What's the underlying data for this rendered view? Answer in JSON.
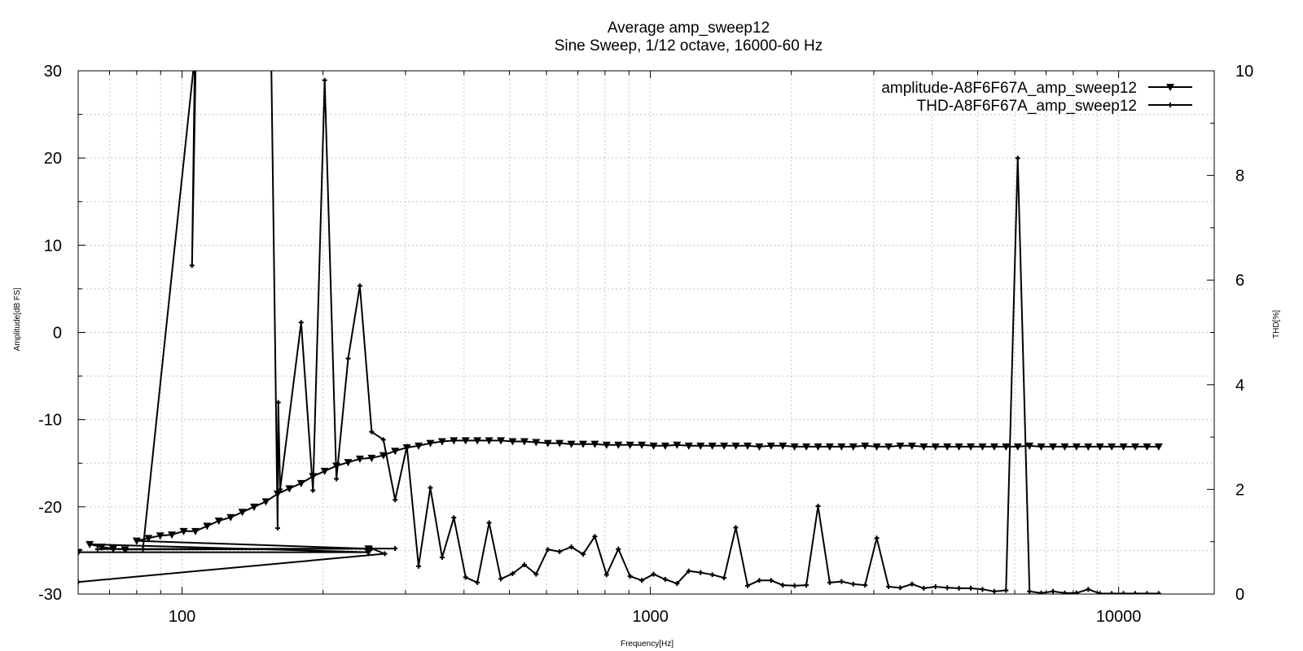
{
  "chart_data": {
    "type": "line",
    "title": "Average amp_sweep12",
    "subtitle": "Sine Sweep, 1/12 octave, 16000-60 Hz",
    "xlabel": "Frequency[Hz]",
    "ylabel": "Amplitude[dB FS]",
    "y2label": "THD[%]",
    "x_scale": "log",
    "xlim": [
      60,
      16000
    ],
    "ylim": [
      -30,
      30
    ],
    "y2lim": [
      0,
      10
    ],
    "x_ticks": [
      100,
      1000,
      10000
    ],
    "x_tick_labels": [
      "100",
      "1000",
      "10000"
    ],
    "y_ticks": [
      -30,
      -20,
      -10,
      0,
      10,
      20,
      30
    ],
    "y_tick_labels": [
      "-30",
      "-20",
      "-10",
      "0",
      "10",
      "20",
      "30"
    ],
    "y2_ticks": [
      0,
      2,
      4,
      6,
      8,
      10
    ],
    "y2_tick_labels": [
      "0",
      "2",
      "4",
      "6",
      "8",
      "10"
    ],
    "grid": true,
    "legend_position": "top-right",
    "series": [
      {
        "name": "amplitude-A8F6F67A_amp_sweep12",
        "axis": "left",
        "marker": "triangle-down",
        "color": "#000000",
        "x": [
          60,
          250,
          63.5,
          67.3,
          71.3,
          75.5,
          250,
          80,
          84.8,
          89.8,
          95.1,
          100.8,
          106.8,
          113.1,
          119.8,
          127,
          134.5,
          142.5,
          151,
          160,
          169.5,
          179.6,
          190.3,
          201.6,
          213.6,
          226.3,
          239.7,
          254,
          269.1,
          285.1,
          302,
          320,
          339,
          359.2,
          380.5,
          403.2,
          427.1,
          452.5,
          479.5,
          508,
          538.2,
          570.2,
          604.1,
          640,
          678,
          718.4,
          761.1,
          806.3,
          854.3,
          905.1,
          958.9,
          1016,
          1076,
          1140,
          1208,
          1280,
          1356,
          1437,
          1522,
          1613,
          1709,
          1810,
          1918,
          2032,
          2153,
          2281,
          2416,
          2560,
          2712,
          2874,
          3044,
          3226,
          3417,
          3620,
          3836,
          4064,
          4305,
          4561,
          4833,
          5120,
          5425,
          5747,
          6089,
          6451,
          6834,
          7241,
          7671,
          8127,
          8611,
          9123,
          9665,
          10240,
          10849,
          11494,
          12177
        ],
        "y": [
          -25.2,
          -25.2,
          -24.3,
          -24.6,
          -24.8,
          -24.9,
          -24.8,
          -23.9,
          -23.6,
          -23.3,
          -23.2,
          -22.8,
          -22.8,
          -22.2,
          -21.6,
          -21.2,
          -20.6,
          -20.0,
          -19.4,
          -18.5,
          -17.9,
          -17.3,
          -16.5,
          -15.9,
          -15.3,
          -14.9,
          -14.5,
          -14.4,
          -14.1,
          -13.6,
          -13.2,
          -13.0,
          -12.7,
          -12.5,
          -12.4,
          -12.4,
          -12.4,
          -12.4,
          -12.4,
          -12.5,
          -12.5,
          -12.6,
          -12.7,
          -12.7,
          -12.8,
          -12.8,
          -12.8,
          -12.9,
          -12.9,
          -12.9,
          -12.9,
          -13.0,
          -13.0,
          -12.9,
          -13.0,
          -13.0,
          -13.0,
          -13.0,
          -13.0,
          -13.0,
          -13.1,
          -13.0,
          -13.0,
          -13.1,
          -13.1,
          -13.1,
          -13.1,
          -13.1,
          -13.1,
          -13.0,
          -13.1,
          -13.1,
          -13.0,
          -13.0,
          -13.1,
          -13.1,
          -13.1,
          -13.1,
          -13.1,
          -13.1,
          -13.1,
          -13.1,
          -13.1,
          -13.0,
          -13.1,
          -13.1,
          -13.1,
          -13.1,
          -13.1,
          -13.1,
          -13.1,
          -13.1,
          -13.1,
          -13.1,
          -13.1
        ]
      },
      {
        "name": "THD-A8F6F67A_amp_sweep12",
        "axis": "right",
        "marker": "plus",
        "color": "#000000",
        "x": [
          60,
          271,
          254,
          285,
          66,
          76,
          82.5,
          106.5,
          105,
          107,
          155,
          160,
          160.5,
          162,
          179.6,
          190.3,
          201.6,
          213.6,
          226.3,
          239.7,
          254,
          269.1,
          285.1,
          302,
          320,
          339,
          359.2,
          380.5,
          403.2,
          427.1,
          452.5,
          479.5,
          508,
          538.2,
          570.2,
          604.1,
          640,
          678,
          718.4,
          761.1,
          806.3,
          854.3,
          905.1,
          958.9,
          1016,
          1076,
          1140,
          1208,
          1280,
          1356,
          1437,
          1522,
          1613,
          1709,
          1810,
          1918,
          2032,
          2153,
          2281,
          2416,
          2560,
          2712,
          2874,
          3044,
          3226,
          3417,
          3620,
          3836,
          4064,
          4305,
          4561,
          4833,
          5120,
          5425,
          5747,
          6089,
          6451,
          6834,
          7241,
          7671,
          8127,
          8611,
          9123,
          9665,
          10240,
          10849,
          11494,
          12177
        ],
        "y": [
          0.23,
          0.77,
          0.87,
          0.87,
          0.86,
          0.86,
          0.86,
          10.3,
          6.28,
          10.3,
          10.3,
          1.26,
          3.66,
          2.0,
          5.19,
          1.98,
          9.82,
          2.2,
          4.5,
          5.89,
          3.1,
          2.95,
          1.8,
          2.82,
          0.53,
          2.03,
          0.7,
          1.46,
          0.32,
          0.22,
          1.36,
          0.29,
          0.39,
          0.56,
          0.38,
          0.85,
          0.81,
          0.9,
          0.76,
          1.1,
          0.37,
          0.86,
          0.34,
          0.26,
          0.38,
          0.28,
          0.2,
          0.44,
          0.41,
          0.37,
          0.31,
          1.27,
          0.16,
          0.26,
          0.26,
          0.17,
          0.16,
          0.17,
          1.68,
          0.22,
          0.24,
          0.19,
          0.17,
          1.07,
          0.14,
          0.12,
          0.19,
          0.11,
          0.14,
          0.12,
          0.11,
          0.11,
          0.09,
          0.05,
          0.07,
          8.33,
          0.05,
          0.02,
          0.05,
          0.02,
          0.02,
          0.09,
          0.01,
          0.01,
          0.01,
          0.01,
          0.01,
          0.01
        ]
      }
    ]
  }
}
